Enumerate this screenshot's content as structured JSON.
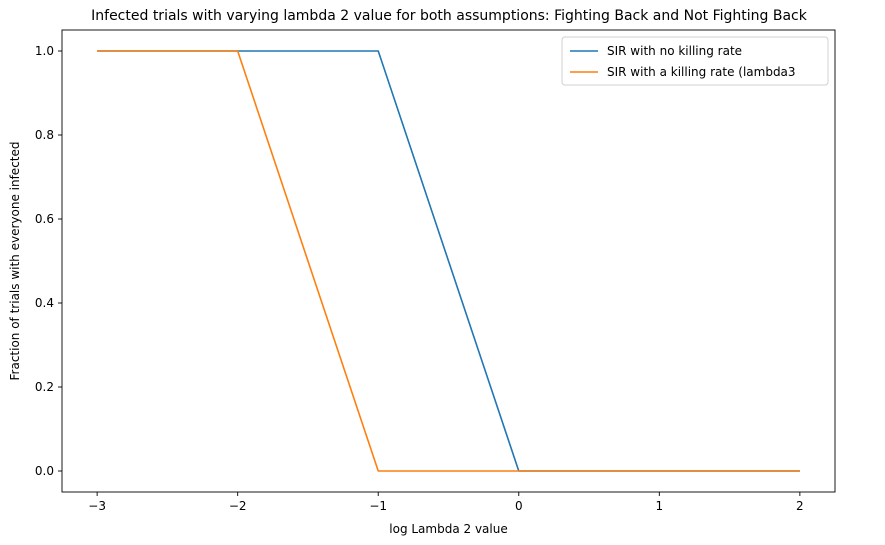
{
  "chart_data": {
    "type": "line",
    "title": "Infected trials with varying lambda 2 value for both assumptions: Fighting Back and Not Fighting Back",
    "xlabel": "log Lambda 2 value",
    "ylabel": "Fraction of trials with everyone infected",
    "xlim": [
      -3.25,
      2.25
    ],
    "ylim": [
      -0.05,
      1.05
    ],
    "xticks": [
      -3,
      -2,
      -1,
      0,
      1,
      2
    ],
    "yticks": [
      0.0,
      0.2,
      0.4,
      0.6,
      0.8,
      1.0
    ],
    "xtick_labels": [
      "−3",
      "−2",
      "−1",
      "0",
      "1",
      "2"
    ],
    "ytick_labels": [
      "0.0",
      "0.2",
      "0.4",
      "0.6",
      "0.8",
      "1.0"
    ],
    "legend_position": "upper right",
    "grid": false,
    "series": [
      {
        "name": "SIR with no killing rate",
        "color": "#1f77b4",
        "x": [
          -3,
          -2,
          -1,
          0,
          1,
          2
        ],
        "y": [
          1.0,
          1.0,
          1.0,
          0.0,
          0.0,
          0.0
        ]
      },
      {
        "name": "SIR with a killing rate (lambda3",
        "color": "#ff7f0e",
        "x": [
          -3,
          -2,
          -1,
          0,
          1,
          2
        ],
        "y": [
          1.0,
          1.0,
          0.0,
          0.0,
          0.0,
          0.0
        ]
      }
    ]
  }
}
